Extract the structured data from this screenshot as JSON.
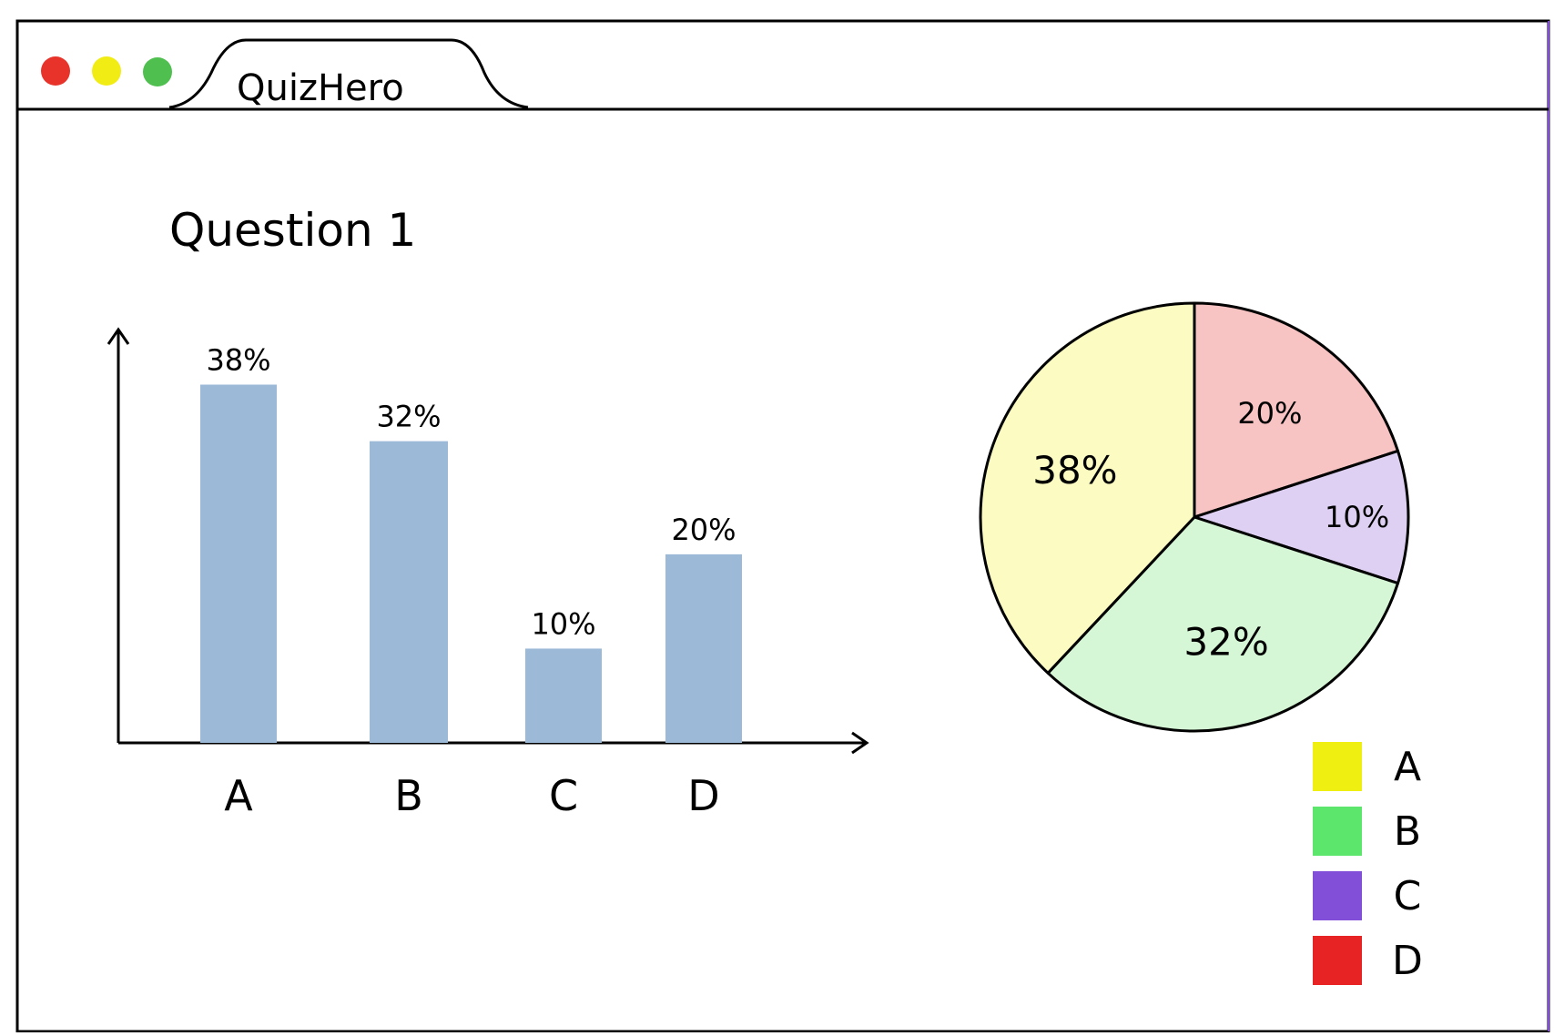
{
  "window": {
    "tab_title": "QuizHero",
    "controls": {
      "close_color": "#e8332a",
      "minimize_color": "#f2ec15",
      "maximize_color": "#4fbf4f"
    }
  },
  "page": {
    "question_title": "Question 1"
  },
  "chart_data": [
    {
      "type": "bar",
      "categories": [
        "A",
        "B",
        "C",
        "D"
      ],
      "values": [
        38,
        32,
        10,
        20
      ],
      "data_labels": [
        "38%",
        "32%",
        "10%",
        "20%"
      ],
      "ylim": [
        0,
        45
      ],
      "grid": false,
      "bar_color": "#9db9d8"
    },
    {
      "type": "pie",
      "categories": [
        "A",
        "B",
        "C",
        "D"
      ],
      "values": [
        38,
        32,
        10,
        20
      ],
      "data_labels": [
        "38%",
        "32%",
        "10%",
        "20%"
      ],
      "slice_colors": [
        "#fbfbc2",
        "#d6f7d6",
        "#ded0f2",
        "#f8c3c3"
      ],
      "legend": {
        "placement": "bottom-right",
        "items": [
          {
            "label": "A",
            "color": "#f0ef12"
          },
          {
            "label": "B",
            "color": "#5ce76c"
          },
          {
            "label": "C",
            "color": "#8250d8"
          },
          {
            "label": "D",
            "color": "#e82323"
          }
        ]
      }
    }
  ]
}
